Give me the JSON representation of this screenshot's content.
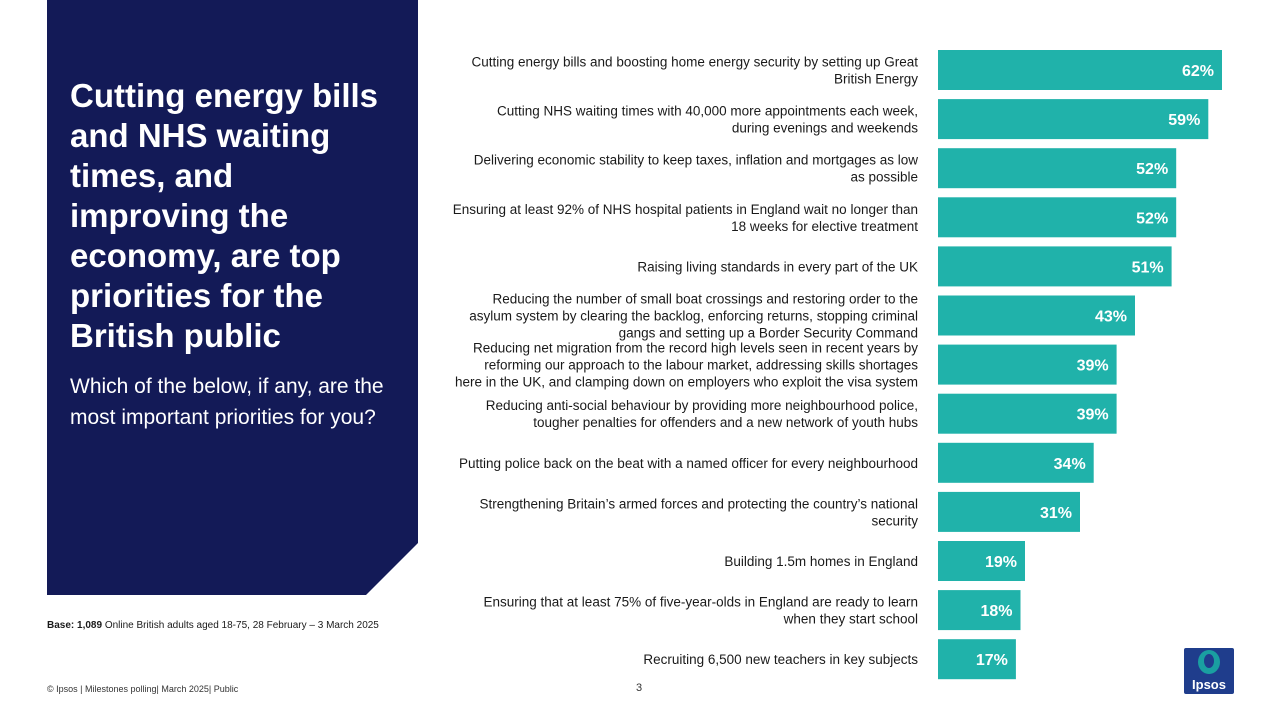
{
  "panel": {
    "title": "Cutting energy bills and NHS waiting times, and improving the economy,  are top priorities for the British public",
    "subtitle": "Which of the below, if any, are the most important priorities for you?"
  },
  "base": {
    "label": "Base: 1,089",
    "text": " Online British adults aged 18-75, 28 February – 3 March 2025"
  },
  "footer": {
    "text": "© Ipsos | Milestones polling| March 2025| Public",
    "page_number": "3"
  },
  "logo": {
    "text": "Ipsos"
  },
  "colors": {
    "panel": "#131a57",
    "bar": "#20b2aa",
    "logo": "#1f3d8c"
  },
  "chart_data": {
    "type": "bar",
    "orientation": "horizontal",
    "title": "Which of the below, if any, are the most important priorities for you?",
    "unit": "%",
    "xlim": [
      0,
      62
    ],
    "categories": [
      [
        "Cutting energy bills and boosting home energy security by setting up Great",
        "British Energy"
      ],
      [
        "Cutting NHS waiting times with 40,000 more appointments each week,",
        "during evenings and weekends"
      ],
      [
        "Delivering economic stability to keep taxes, inflation and mortgages as low",
        "as possible"
      ],
      [
        "Ensuring at least 92% of NHS hospital patients in England wait no longer than",
        "18 weeks for elective treatment"
      ],
      [
        "Raising living standards in every part of the UK"
      ],
      [
        "Reducing the number of small boat crossings and restoring order to the",
        "asylum system by clearing the backlog, enforcing returns, stopping criminal",
        "gangs and setting up a Border Security Command"
      ],
      [
        "Reducing net migration from the record high levels seen in recent years by",
        "reforming our approach to the labour market, addressing skills shortages",
        "here in the UK, and clamping down on employers who exploit the visa system"
      ],
      [
        "Reducing anti-social behaviour by providing more neighbourhood police,",
        "tougher penalties for offenders and a new network of youth hubs"
      ],
      [
        "Putting police back on the beat with a named officer for every neighbourhood"
      ],
      [
        "Strengthening Britain’s armed forces and protecting the country’s national",
        "security"
      ],
      [
        "Building 1.5m homes in England"
      ],
      [
        "Ensuring that at least 75% of five-year-olds in England are ready to learn",
        "when they start school"
      ],
      [
        "Recruiting 6,500 new teachers in key subjects"
      ]
    ],
    "values": [
      62,
      59,
      52,
      52,
      51,
      43,
      39,
      39,
      34,
      31,
      19,
      18,
      17
    ],
    "value_labels": [
      "62%",
      "59%",
      "52%",
      "52%",
      "51%",
      "43%",
      "39%",
      "39%",
      "34%",
      "31%",
      "19%",
      "18%",
      "17%"
    ]
  }
}
